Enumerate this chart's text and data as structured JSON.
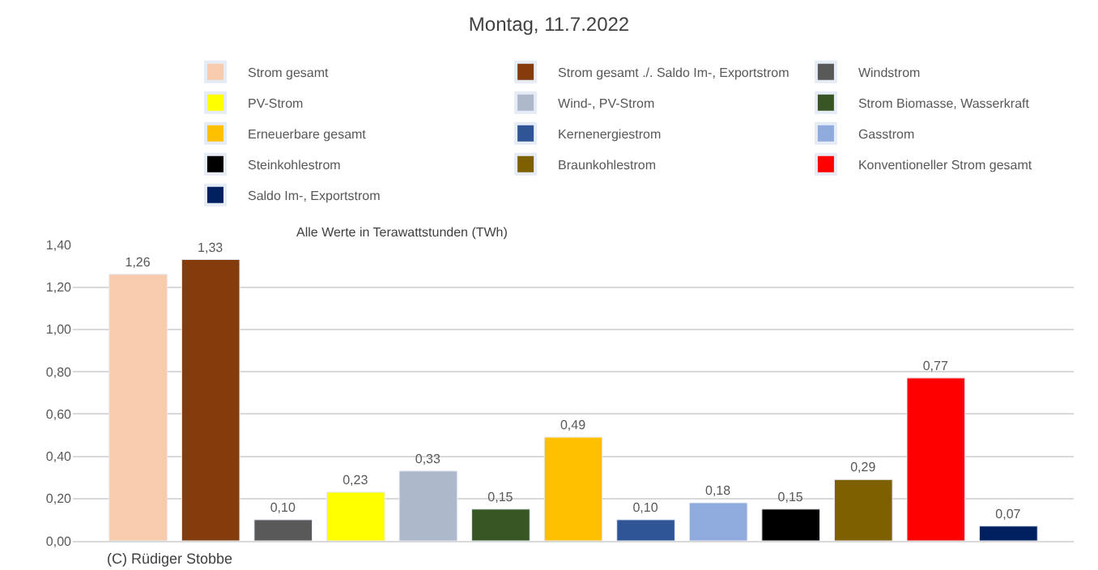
{
  "chart_data": {
    "type": "bar",
    "title": "Montag, 11.7.2022",
    "categories": [
      null,
      null,
      null,
      null,
      null,
      null,
      null,
      null,
      null,
      null,
      null,
      null,
      null
    ],
    "series": [
      {
        "name": "Strom gesamt",
        "color": "#f8cbad",
        "values": [
          1.26,
          null,
          null,
          null,
          null,
          null,
          null,
          null,
          null,
          null,
          null,
          null,
          null
        ],
        "value_labels": [
          "1,26",
          null,
          null,
          null,
          null,
          null,
          null,
          null,
          null,
          null,
          null,
          null,
          null
        ]
      },
      {
        "name": "Strom gesamt ./. Saldo Im-, Exportstrom",
        "color": "#843c0c",
        "values": [
          null,
          1.33,
          null,
          null,
          null,
          null,
          null,
          null,
          null,
          null,
          null,
          null,
          null
        ],
        "value_labels": [
          null,
          "1,33",
          null,
          null,
          null,
          null,
          null,
          null,
          null,
          null,
          null,
          null,
          null
        ]
      },
      {
        "name": "Windstrom",
        "color": "#595959",
        "values": [
          null,
          null,
          0.1,
          null,
          null,
          null,
          null,
          null,
          null,
          null,
          null,
          null,
          null
        ],
        "value_labels": [
          null,
          null,
          "0,10",
          null,
          null,
          null,
          null,
          null,
          null,
          null,
          null,
          null,
          null
        ]
      },
      {
        "name": "PV-Strom",
        "color": "#ffff00",
        "values": [
          null,
          null,
          null,
          0.23,
          null,
          null,
          null,
          null,
          null,
          null,
          null,
          null,
          null
        ],
        "value_labels": [
          null,
          null,
          null,
          "0,23",
          null,
          null,
          null,
          null,
          null,
          null,
          null,
          null,
          null
        ]
      },
      {
        "name": "Wind-, PV-Strom",
        "color": "#adb9ca",
        "values": [
          null,
          null,
          null,
          null,
          0.33,
          null,
          null,
          null,
          null,
          null,
          null,
          null,
          null
        ],
        "value_labels": [
          null,
          null,
          null,
          null,
          "0,33",
          null,
          null,
          null,
          null,
          null,
          null,
          null,
          null
        ]
      },
      {
        "name": "Strom Biomasse, Wasserkraft",
        "color": "#375623",
        "values": [
          null,
          null,
          null,
          null,
          null,
          0.15,
          null,
          null,
          null,
          null,
          null,
          null,
          null
        ],
        "value_labels": [
          null,
          null,
          null,
          null,
          null,
          "0,15",
          null,
          null,
          null,
          null,
          null,
          null,
          null
        ]
      },
      {
        "name": "Erneuerbare gesamt",
        "color": "#ffc000",
        "values": [
          null,
          null,
          null,
          null,
          null,
          null,
          0.49,
          null,
          null,
          null,
          null,
          null,
          null
        ],
        "value_labels": [
          null,
          null,
          null,
          null,
          null,
          null,
          "0,49",
          null,
          null,
          null,
          null,
          null,
          null
        ]
      },
      {
        "name": "Kernenergiestrom",
        "color": "#2f5597",
        "values": [
          null,
          null,
          null,
          null,
          null,
          null,
          null,
          0.1,
          null,
          null,
          null,
          null,
          null
        ],
        "value_labels": [
          null,
          null,
          null,
          null,
          null,
          null,
          null,
          "0,10",
          null,
          null,
          null,
          null,
          null
        ]
      },
      {
        "name": "Gasstrom",
        "color": "#8faadc",
        "values": [
          null,
          null,
          null,
          null,
          null,
          null,
          null,
          null,
          0.18,
          null,
          null,
          null,
          null
        ],
        "value_labels": [
          null,
          null,
          null,
          null,
          null,
          null,
          null,
          null,
          "0,18",
          null,
          null,
          null,
          null
        ]
      },
      {
        "name": "Steinkohlestrom",
        "color": "#000000",
        "values": [
          null,
          null,
          null,
          null,
          null,
          null,
          null,
          null,
          null,
          0.15,
          null,
          null,
          null
        ],
        "value_labels": [
          null,
          null,
          null,
          null,
          null,
          null,
          null,
          null,
          null,
          "0,15",
          null,
          null,
          null
        ]
      },
      {
        "name": "Braunkohlestrom",
        "color": "#7f6000",
        "values": [
          null,
          null,
          null,
          null,
          null,
          null,
          null,
          null,
          null,
          null,
          0.29,
          null,
          null
        ],
        "value_labels": [
          null,
          null,
          null,
          null,
          null,
          null,
          null,
          null,
          null,
          null,
          "0,29",
          null,
          null
        ]
      },
      {
        "name": "Konventioneller Strom gesamt",
        "color": "#ff0000",
        "values": [
          null,
          null,
          null,
          null,
          null,
          null,
          null,
          null,
          null,
          null,
          null,
          0.77,
          null
        ],
        "value_labels": [
          null,
          null,
          null,
          null,
          null,
          null,
          null,
          null,
          null,
          null,
          null,
          "0,77",
          null
        ]
      },
      {
        "name": "Saldo Im-, Exportstrom",
        "color": "#002060",
        "values": [
          null,
          null,
          null,
          null,
          null,
          null,
          null,
          null,
          null,
          null,
          null,
          null,
          0.07
        ],
        "value_labels": [
          null,
          null,
          null,
          null,
          null,
          null,
          null,
          null,
          null,
          null,
          null,
          null,
          "0,07"
        ]
      }
    ],
    "ylim": [
      0,
      1.4
    ],
    "yticks": [
      {
        "value": 0,
        "label": "0,00"
      },
      {
        "value": 0.2,
        "label": "0,20"
      },
      {
        "value": 0.4,
        "label": "0,40"
      },
      {
        "value": 0.6,
        "label": "0,60"
      },
      {
        "value": 0.8,
        "label": "0,80"
      },
      {
        "value": 1.0,
        "label": "1,00"
      },
      {
        "value": 1.2,
        "label": "1,20"
      },
      {
        "value": 1.4,
        "label": "1,40"
      }
    ],
    "grid": "y",
    "legend": "top",
    "data_labels": true,
    "annotations": [
      "Alle Werte in Terawattstunden (TWh)",
      "(C) Rüdiger Stobbe"
    ]
  }
}
